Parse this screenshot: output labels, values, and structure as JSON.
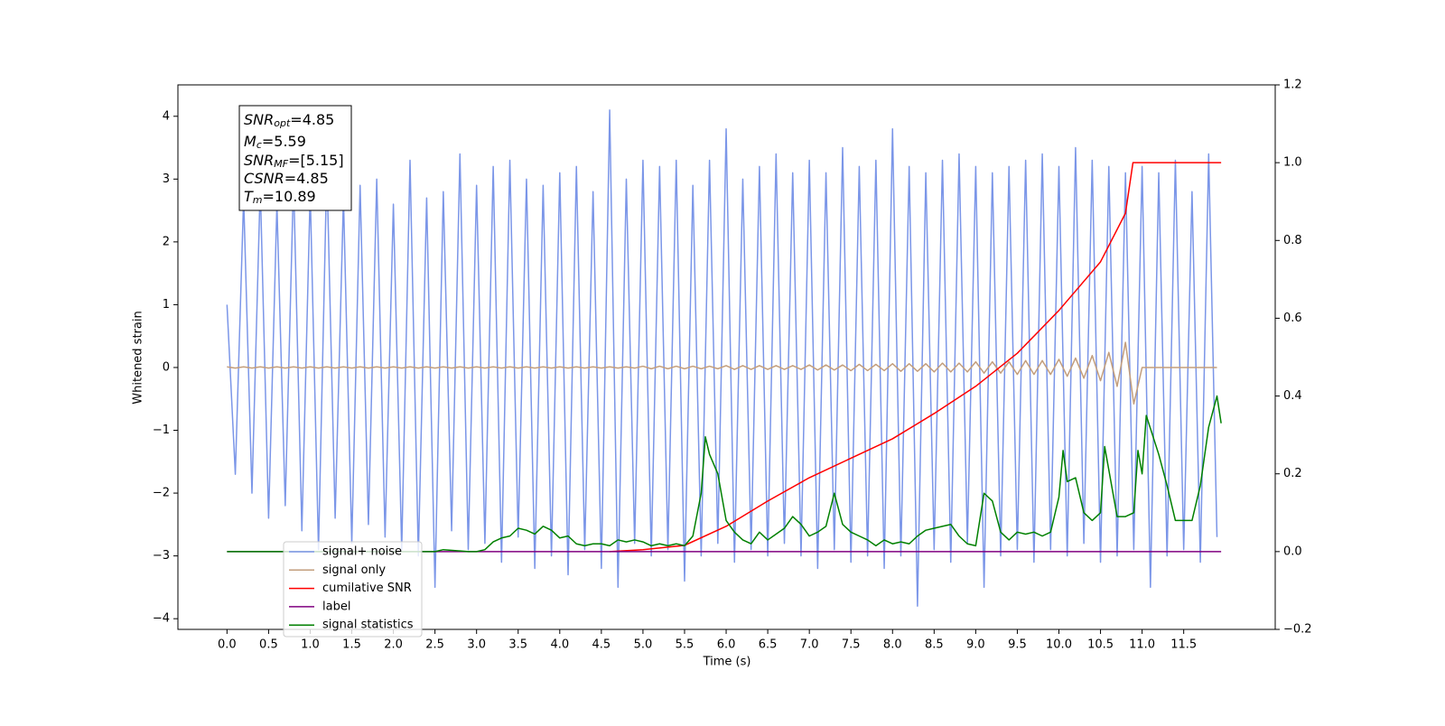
{
  "chart_data": {
    "type": "line",
    "xlabel": "Time (s)",
    "ylabel": "Whitened strain",
    "xlim": [
      -0.59,
      12.6
    ],
    "ylim": [
      -4.17,
      4.5
    ],
    "y2lim": [
      -0.2,
      1.2
    ],
    "xticks": [
      {
        "value": 0,
        "label": "0.0"
      },
      0.5,
      {
        "value": 1,
        "label": "1.0"
      },
      1.5,
      {
        "value": 2,
        "label": "2.0"
      },
      2.5,
      {
        "value": 3,
        "label": "3.0"
      },
      3.5,
      {
        "value": 4,
        "label": "4.0"
      },
      4.5,
      {
        "value": 5,
        "label": "5.0"
      },
      5.5,
      {
        "value": 6,
        "label": "6.0"
      },
      6.5,
      {
        "value": 7,
        "label": "7.0"
      },
      7.5,
      {
        "value": 8,
        "label": "8.0"
      },
      8.5,
      {
        "value": 9,
        "label": "9.0"
      },
      9.5,
      {
        "value": 10,
        "label": "10.0"
      },
      10.5,
      {
        "value": 11,
        "label": "11.0"
      },
      11.5
    ],
    "yticks": [
      {
        "value": -4,
        "label": "−4"
      },
      {
        "value": -3,
        "label": "−3"
      },
      {
        "value": -2,
        "label": "−2"
      },
      {
        "value": -1,
        "label": "−1"
      },
      0,
      1,
      2,
      3,
      4
    ],
    "y2ticks": [
      {
        "value": -0.2,
        "label": "−0.2"
      },
      {
        "value": 0,
        "label": "0.0"
      },
      0.2,
      0.4,
      0.6,
      0.8,
      {
        "value": 1,
        "label": "1.0"
      },
      1.2
    ],
    "annotation": [
      {
        "main": "SNR",
        "sub": "opt",
        "text": "=4.85"
      },
      {
        "main": "M",
        "sub": "c",
        "text": "=5.59"
      },
      {
        "main": "SNR",
        "sub": "MF",
        "text": "=[5.15]"
      },
      {
        "main": "CSNR",
        "sub": "",
        "text": "=4.85"
      },
      {
        "main": "T",
        "sub": "m",
        "text": "=10.89"
      }
    ],
    "x": [
      0.0,
      0.1,
      0.2,
      0.3,
      0.4,
      0.5,
      0.6,
      0.7,
      0.8,
      0.9,
      1.0,
      1.1,
      1.2,
      1.3,
      1.4,
      1.5,
      1.6,
      1.7,
      1.8,
      1.9,
      2.0,
      2.1,
      2.2,
      2.3,
      2.4,
      2.5,
      2.6,
      2.7,
      2.8,
      2.9,
      3.0,
      3.1,
      3.2,
      3.3,
      3.4,
      3.5,
      3.6,
      3.7,
      3.8,
      3.9,
      4.0,
      4.1,
      4.2,
      4.3,
      4.4,
      4.5,
      4.6,
      4.7,
      4.8,
      4.9,
      5.0,
      5.1,
      5.2,
      5.3,
      5.4,
      5.5,
      5.6,
      5.7,
      5.8,
      5.9,
      6.0,
      6.1,
      6.2,
      6.3,
      6.4,
      6.5,
      6.6,
      6.7,
      6.8,
      6.9,
      7.0,
      7.1,
      7.2,
      7.3,
      7.4,
      7.5,
      7.6,
      7.7,
      7.8,
      7.9,
      8.0,
      8.1,
      8.2,
      8.3,
      8.4,
      8.5,
      8.6,
      8.7,
      8.8,
      8.9,
      9.0,
      9.1,
      9.2,
      9.3,
      9.4,
      9.5,
      9.6,
      9.7,
      9.8,
      9.9,
      10.0,
      10.1,
      10.2,
      10.3,
      10.4,
      10.5,
      10.6,
      10.7,
      10.8,
      10.9,
      11.0,
      11.1,
      11.2,
      11.3,
      11.4,
      11.5,
      11.6,
      11.7,
      11.8,
      11.9
    ],
    "series": [
      {
        "name": "signal+ noise",
        "color": "#7b96e8",
        "values": [
          1.0,
          -1.7,
          2.7,
          -2.0,
          2.9,
          -2.4,
          2.6,
          -2.2,
          3.0,
          -2.6,
          2.8,
          -2.9,
          3.2,
          -2.4,
          2.7,
          -2.8,
          2.9,
          -2.5,
          3.0,
          -2.7,
          2.6,
          -2.9,
          3.3,
          -3.0,
          2.7,
          -3.5,
          2.8,
          -2.6,
          3.4,
          -2.9,
          2.9,
          -2.8,
          3.2,
          -3.1,
          3.3,
          -2.7,
          3.0,
          -3.2,
          2.9,
          -3.0,
          3.1,
          -3.3,
          3.2,
          -2.9,
          2.8,
          -3.2,
          4.1,
          -3.5,
          3.0,
          -2.8,
          3.3,
          -3.0,
          3.2,
          -2.9,
          3.3,
          -3.4,
          2.9,
          -3.0,
          3.3,
          -2.8,
          3.8,
          -3.1,
          3.0,
          -2.9,
          3.2,
          -3.0,
          3.4,
          -2.8,
          3.1,
          -3.0,
          3.3,
          -3.2,
          3.1,
          -2.9,
          3.5,
          -3.1,
          3.2,
          -3.0,
          3.3,
          -3.2,
          3.8,
          -3.0,
          3.2,
          -3.8,
          3.1,
          -2.9,
          3.3,
          -3.1,
          3.4,
          -2.8,
          3.2,
          -3.5,
          3.1,
          -3.0,
          3.2,
          -2.9,
          3.3,
          -3.1,
          3.4,
          -2.9,
          3.2,
          -3.0,
          3.5,
          -2.8,
          3.3,
          -3.1,
          3.2,
          -3.0,
          3.1,
          -2.9,
          3.2,
          -3.5,
          3.1,
          -3.0,
          3.3,
          -2.9,
          2.8,
          -3.1,
          3.4,
          -2.7
        ]
      },
      {
        "name": "signal only",
        "color": "#c39e7c",
        "values": [
          0.01,
          -0.01,
          0.01,
          -0.01,
          0.01,
          -0.01,
          0.01,
          -0.01,
          0.01,
          -0.01,
          0.01,
          -0.01,
          0.01,
          -0.01,
          0.01,
          -0.01,
          0.01,
          -0.01,
          0.01,
          -0.01,
          0.01,
          -0.01,
          0.01,
          -0.01,
          0.01,
          -0.01,
          0.01,
          -0.01,
          0.01,
          -0.01,
          0.01,
          -0.01,
          0.01,
          -0.01,
          0.01,
          -0.01,
          0.01,
          -0.01,
          0.01,
          -0.01,
          0.01,
          -0.01,
          0.01,
          -0.01,
          0.01,
          -0.01,
          0.01,
          -0.01,
          0.01,
          -0.01,
          0.02,
          -0.02,
          0.02,
          -0.02,
          0.02,
          -0.02,
          0.02,
          -0.02,
          0.02,
          -0.02,
          0.03,
          -0.03,
          0.03,
          -0.03,
          0.03,
          -0.03,
          0.03,
          -0.03,
          0.03,
          -0.03,
          0.04,
          -0.04,
          0.04,
          -0.04,
          0.04,
          -0.05,
          0.05,
          -0.05,
          0.05,
          -0.05,
          0.06,
          -0.06,
          0.06,
          -0.06,
          0.06,
          -0.07,
          0.07,
          -0.07,
          0.07,
          -0.07,
          0.09,
          -0.09,
          0.09,
          -0.09,
          0.09,
          -0.11,
          0.11,
          -0.11,
          0.11,
          -0.11,
          0.13,
          -0.14,
          0.15,
          -0.17,
          0.19,
          -0.21,
          0.24,
          -0.3,
          0.4,
          -0.58,
          0,
          0,
          0,
          0,
          0,
          0,
          0,
          0,
          0,
          0
        ]
      },
      {
        "name": "cumilative SNR",
        "color": "#ff0000",
        "axis": "y2",
        "x": [
          4.6,
          5.0,
          5.5,
          6.0,
          6.5,
          7.0,
          7.5,
          8.0,
          8.5,
          9.0,
          9.5,
          10.0,
          10.5,
          10.8,
          10.89,
          11.95
        ],
        "values": [
          0,
          0.005,
          0.016,
          0.065,
          0.13,
          0.19,
          0.24,
          0.29,
          0.355,
          0.425,
          0.51,
          0.62,
          0.745,
          0.87,
          1.0,
          1.0
        ]
      },
      {
        "name": "label",
        "color": "#800080",
        "axis": "y2",
        "x": [
          0,
          11.95
        ],
        "values": [
          0,
          0
        ]
      },
      {
        "name": "signal statistics",
        "color": "#008000",
        "axis": "y2",
        "x": [
          0,
          2.5,
          2.6,
          2.9,
          3.0,
          3.1,
          3.2,
          3.3,
          3.4,
          3.5,
          3.6,
          3.7,
          3.8,
          3.9,
          4.0,
          4.1,
          4.2,
          4.3,
          4.4,
          4.5,
          4.6,
          4.7,
          4.8,
          4.9,
          5.0,
          5.1,
          5.2,
          5.3,
          5.4,
          5.5,
          5.6,
          5.7,
          5.75,
          5.8,
          5.9,
          6.0,
          6.1,
          6.2,
          6.3,
          6.4,
          6.5,
          6.6,
          6.7,
          6.8,
          6.9,
          7.0,
          7.1,
          7.2,
          7.3,
          7.4,
          7.5,
          7.6,
          7.7,
          7.8,
          7.9,
          8.0,
          8.1,
          8.2,
          8.3,
          8.4,
          8.5,
          8.6,
          8.7,
          8.8,
          8.9,
          9.0,
          9.1,
          9.2,
          9.3,
          9.4,
          9.5,
          9.6,
          9.7,
          9.8,
          9.9,
          10.0,
          10.05,
          10.1,
          10.2,
          10.3,
          10.4,
          10.5,
          10.55,
          10.7,
          10.8,
          10.9,
          10.95,
          11.0,
          11.05,
          11.2,
          11.3,
          11.4,
          11.6,
          11.7,
          11.8,
          11.9,
          11.95
        ],
        "values": [
          0,
          0,
          0.005,
          0,
          0,
          0.005,
          0.025,
          0.035,
          0.04,
          0.06,
          0.055,
          0.045,
          0.065,
          0.055,
          0.035,
          0.04,
          0.02,
          0.015,
          0.02,
          0.02,
          0.015,
          0.03,
          0.025,
          0.03,
          0.025,
          0.015,
          0.02,
          0.015,
          0.02,
          0.015,
          0.04,
          0.15,
          0.295,
          0.25,
          0.2,
          0.08,
          0.05,
          0.03,
          0.02,
          0.05,
          0.03,
          0.045,
          0.06,
          0.09,
          0.07,
          0.04,
          0.05,
          0.065,
          0.15,
          0.07,
          0.05,
          0.04,
          0.03,
          0.015,
          0.03,
          0.02,
          0.025,
          0.02,
          0.04,
          0.055,
          0.06,
          0.065,
          0.07,
          0.04,
          0.02,
          0.015,
          0.15,
          0.13,
          0.05,
          0.03,
          0.05,
          0.045,
          0.05,
          0.04,
          0.05,
          0.14,
          0.26,
          0.18,
          0.19,
          0.1,
          0.08,
          0.1,
          0.27,
          0.09,
          0.09,
          0.1,
          0.26,
          0.2,
          0.35,
          0.25,
          0.17,
          0.08,
          0.08,
          0.17,
          0.32,
          0.4,
          0.33
        ]
      }
    ]
  }
}
